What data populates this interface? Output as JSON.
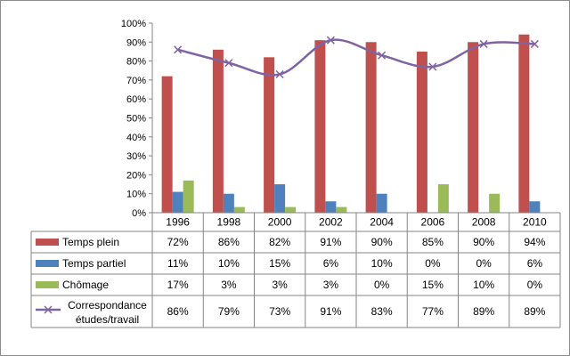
{
  "chart_data": {
    "type": "bar",
    "title": "",
    "xlabel": "",
    "ylabel": "",
    "ylim": [
      0,
      100
    ],
    "y_ticks": [
      "0%",
      "10%",
      "20%",
      "30%",
      "40%",
      "50%",
      "60%",
      "70%",
      "80%",
      "90%",
      "100%"
    ],
    "categories": [
      "1996",
      "1998",
      "2000",
      "2002",
      "2004",
      "2006",
      "2008",
      "2010"
    ],
    "series": [
      {
        "name": "Temps plein",
        "kind": "bar",
        "color": "#C0504D",
        "values": [
          72,
          86,
          82,
          91,
          90,
          85,
          90,
          94
        ],
        "labels": [
          "72%",
          "86%",
          "82%",
          "91%",
          "90%",
          "85%",
          "90%",
          "94%"
        ]
      },
      {
        "name": "Temps partiel",
        "kind": "bar",
        "color": "#4F81BD",
        "values": [
          11,
          10,
          15,
          6,
          10,
          0,
          0,
          6
        ],
        "labels": [
          "11%",
          "10%",
          "15%",
          "6%",
          "10%",
          "0%",
          "0%",
          "6%"
        ]
      },
      {
        "name": "Chômage",
        "kind": "bar",
        "color": "#9BBB59",
        "values": [
          17,
          3,
          3,
          3,
          0,
          15,
          10,
          0
        ],
        "labels": [
          "17%",
          "3%",
          "3%",
          "3%",
          "0%",
          "15%",
          "10%",
          "0%"
        ]
      },
      {
        "name_lines": [
          "Correspondance",
          "études/travail"
        ],
        "kind": "line",
        "marker": "x",
        "color": "#8064A2",
        "values": [
          86,
          79,
          73,
          91,
          83,
          77,
          89,
          89
        ],
        "labels": [
          "86%",
          "79%",
          "73%",
          "91%",
          "83%",
          "77%",
          "89%",
          "89%"
        ]
      }
    ]
  }
}
